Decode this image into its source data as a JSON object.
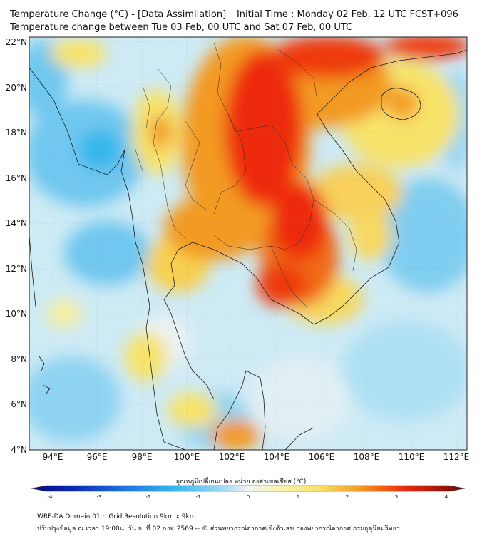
{
  "header": {
    "line1": "Temperature Change (°C) - [Data Assimilation] _ Initial Time : Monday 02 Feb, 12 UTC FCST+096",
    "line2": "Temperature change between Tue 03 Feb, 00 UTC and Sat 07 Feb, 00 UTC"
  },
  "map": {
    "lat_labels": [
      "22°N",
      "20°N",
      "18°N",
      "16°N",
      "14°N",
      "12°N",
      "10°N",
      "8°N",
      "6°N",
      "4°N"
    ],
    "lon_labels": [
      "94°E",
      "96°E",
      "98°E",
      "100°E",
      "102°E",
      "104°E",
      "106°E",
      "108°E",
      "110°E",
      "112°E"
    ],
    "colors": {
      "cold": "#35b6ee",
      "cool": "#a9dcf3",
      "neutral": "#f2f5f6",
      "warm": "#f8e36a",
      "hot": "#f39a22",
      "hottest": "#ee2a0c"
    }
  },
  "colorbar": {
    "title": "อุณหภูมิเปลี่ยนแปลง หน่วย องศาเซลเซียส (°C)",
    "ticks": [
      "-4",
      "-3",
      "-2",
      "-1",
      "0",
      "1",
      "2",
      "3",
      "4"
    ]
  },
  "footer": {
    "line1": "WRF-DA Domain 01 :: Grid Resolution 9km x 9km",
    "line2": "ปรับปรุงข้อมูล ณ เวลา 19:00น. วัน จ. ที่ 02 ก.พ. 2569 -- © ส่วนพยากรณ์อากาศเชิงตัวเลข กองพยากรณ์อากาศ กรมอุตุนิยมวิทยา"
  }
}
